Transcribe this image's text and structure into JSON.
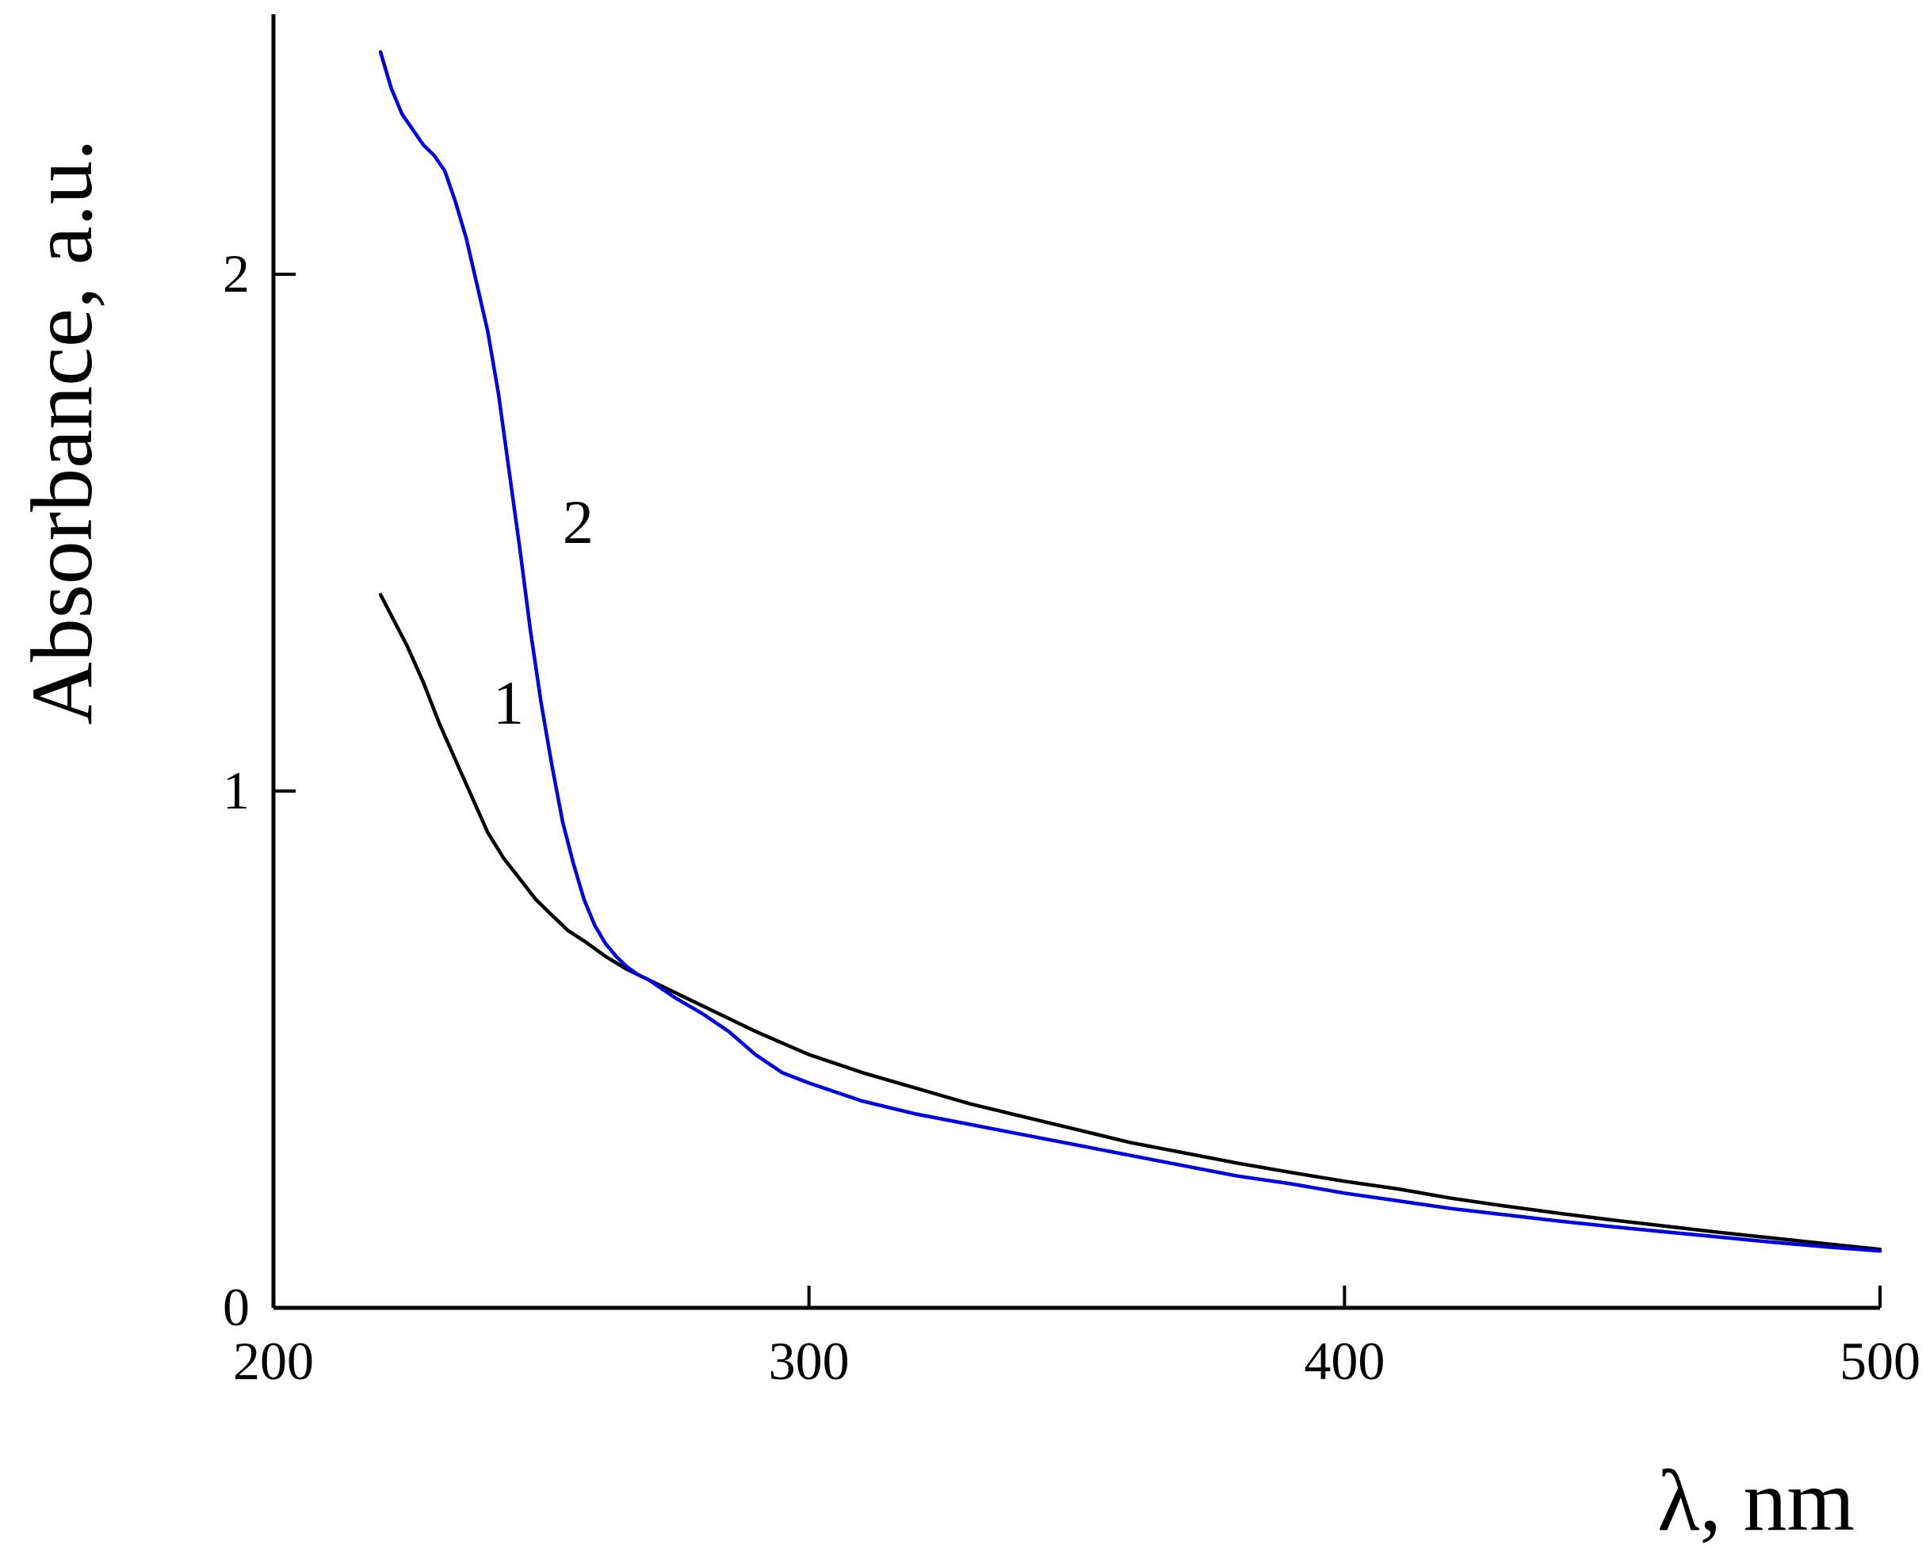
{
  "chart_data": {
    "type": "line",
    "title": "",
    "xlabel": "λ, nm",
    "ylabel": "Absorbance, a.u.",
    "xlim": [
      200,
      500
    ],
    "ylim": [
      0,
      2.5
    ],
    "x_ticks": [
      200,
      300,
      400,
      500
    ],
    "y_ticks": [
      0,
      1,
      2
    ],
    "x_tick_labels": [
      "200",
      "300",
      "400",
      "500"
    ],
    "y_tick_labels": [
      "0",
      "1",
      "2"
    ],
    "grid": false,
    "legend": "none",
    "series": [
      {
        "label": "1",
        "color": "#000000",
        "label_at": [
          241,
          1.13
        ],
        "x": [
          220,
          222,
          225,
          228,
          231,
          234,
          237,
          240,
          243,
          246,
          249,
          252,
          255,
          258,
          262,
          266,
          270,
          275,
          280,
          285,
          290,
          300,
          310,
          320,
          330,
          340,
          350,
          360,
          370,
          380,
          390,
          400,
          410,
          420,
          430,
          440,
          450,
          460,
          470,
          480,
          490,
          500
        ],
        "y": [
          1.38,
          1.34,
          1.28,
          1.21,
          1.13,
          1.06,
          0.99,
          0.92,
          0.87,
          0.83,
          0.79,
          0.76,
          0.73,
          0.71,
          0.68,
          0.655,
          0.635,
          0.61,
          0.585,
          0.56,
          0.535,
          0.49,
          0.455,
          0.425,
          0.395,
          0.37,
          0.345,
          0.32,
          0.3,
          0.28,
          0.262,
          0.245,
          0.23,
          0.212,
          0.197,
          0.183,
          0.17,
          0.158,
          0.146,
          0.135,
          0.124,
          0.113
        ]
      },
      {
        "label": "2",
        "color": "#0000e0",
        "label_at": [
          254,
          1.48
        ],
        "x": [
          220,
          222,
          224,
          226,
          228,
          230,
          232,
          234,
          236,
          238,
          240,
          242,
          244,
          246,
          248,
          250,
          252,
          254,
          256,
          258,
          260,
          262,
          264,
          266,
          268,
          270,
          275,
          280,
          285,
          290,
          295,
          300,
          310,
          320,
          330,
          340,
          350,
          360,
          370,
          380,
          390,
          400,
          410,
          420,
          430,
          440,
          450,
          460,
          470,
          480,
          490,
          500
        ],
        "y": [
          2.43,
          2.36,
          2.31,
          2.28,
          2.25,
          2.23,
          2.2,
          2.14,
          2.07,
          1.98,
          1.89,
          1.77,
          1.62,
          1.47,
          1.31,
          1.17,
          1.05,
          0.94,
          0.86,
          0.79,
          0.74,
          0.705,
          0.68,
          0.66,
          0.645,
          0.635,
          0.6,
          0.57,
          0.535,
          0.49,
          0.455,
          0.435,
          0.4,
          0.375,
          0.355,
          0.335,
          0.315,
          0.295,
          0.275,
          0.255,
          0.24,
          0.222,
          0.207,
          0.192,
          0.18,
          0.168,
          0.157,
          0.147,
          0.137,
          0.127,
          0.118,
          0.11
        ]
      }
    ]
  }
}
